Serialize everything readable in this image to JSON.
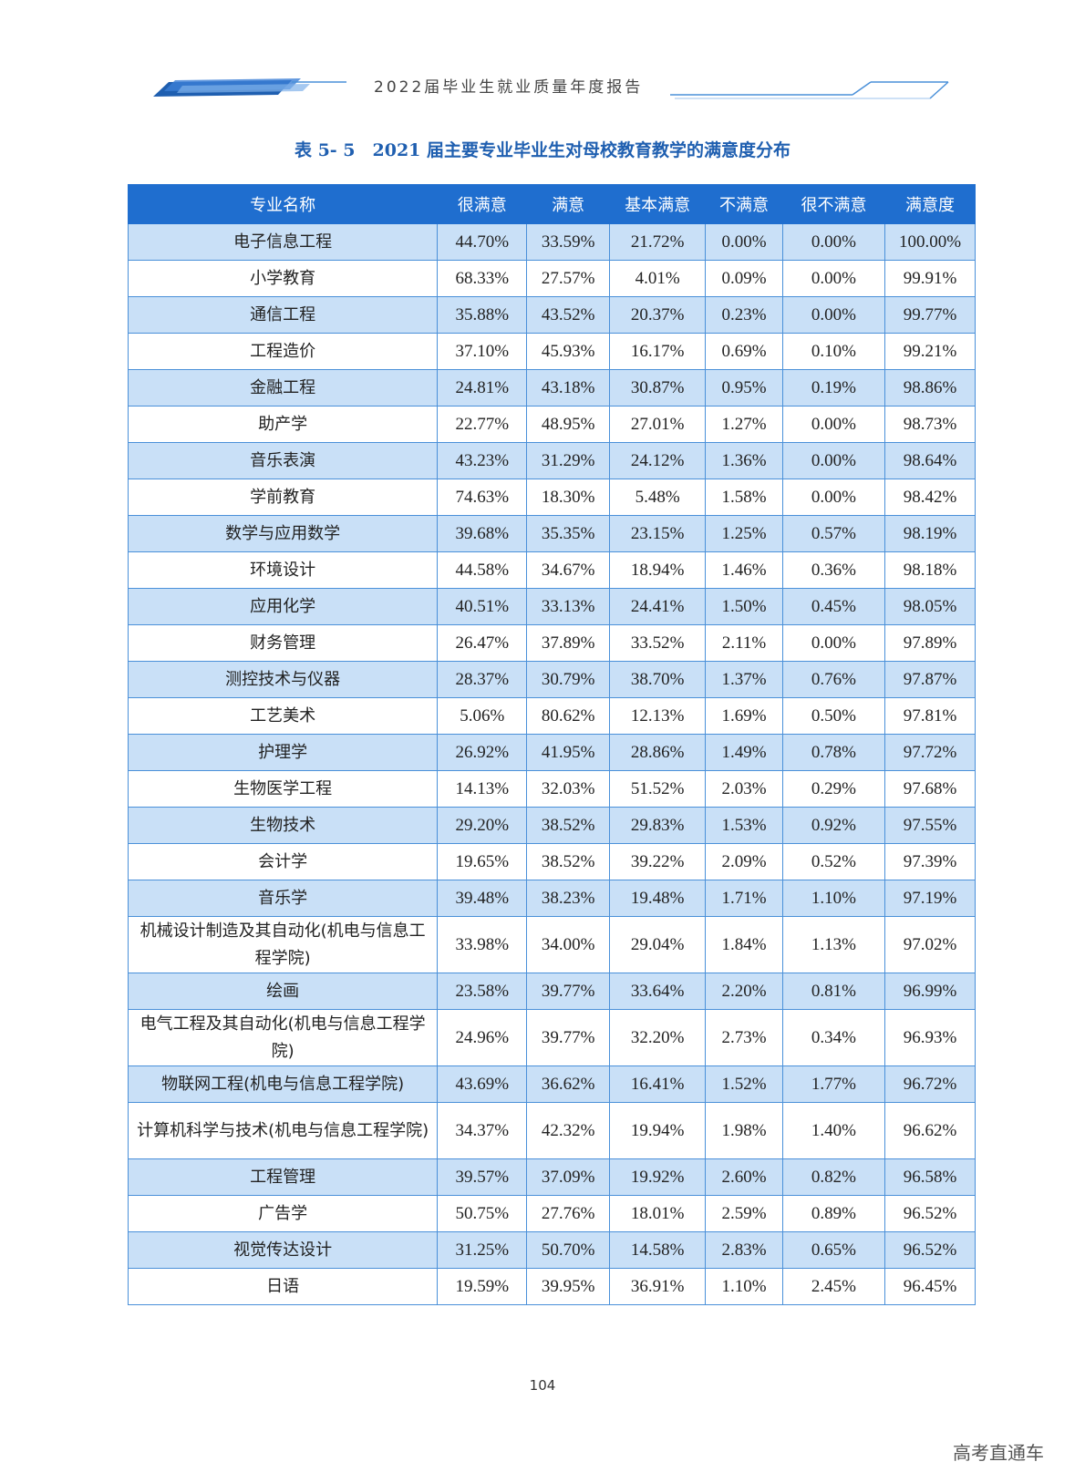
{
  "header": {
    "title": "2022届毕业生就业质量年度报告"
  },
  "caption": "表 5- 5　2021 届主要专业毕业生对母校教育教学的满意度分布",
  "table": {
    "columns": [
      "专业名称",
      "很满意",
      "满意",
      "基本满意",
      "不满意",
      "很不满意",
      "满意度"
    ],
    "rows": [
      [
        "电子信息工程",
        "44.70%",
        "33.59%",
        "21.72%",
        "0.00%",
        "0.00%",
        "100.00%"
      ],
      [
        "小学教育",
        "68.33%",
        "27.57%",
        "4.01%",
        "0.09%",
        "0.00%",
        "99.91%"
      ],
      [
        "通信工程",
        "35.88%",
        "43.52%",
        "20.37%",
        "0.23%",
        "0.00%",
        "99.77%"
      ],
      [
        "工程造价",
        "37.10%",
        "45.93%",
        "16.17%",
        "0.69%",
        "0.10%",
        "99.21%"
      ],
      [
        "金融工程",
        "24.81%",
        "43.18%",
        "30.87%",
        "0.95%",
        "0.19%",
        "98.86%"
      ],
      [
        "助产学",
        "22.77%",
        "48.95%",
        "27.01%",
        "1.27%",
        "0.00%",
        "98.73%"
      ],
      [
        "音乐表演",
        "43.23%",
        "31.29%",
        "24.12%",
        "1.36%",
        "0.00%",
        "98.64%"
      ],
      [
        "学前教育",
        "74.63%",
        "18.30%",
        "5.48%",
        "1.58%",
        "0.00%",
        "98.42%"
      ],
      [
        "数学与应用数学",
        "39.68%",
        "35.35%",
        "23.15%",
        "1.25%",
        "0.57%",
        "98.19%"
      ],
      [
        "环境设计",
        "44.58%",
        "34.67%",
        "18.94%",
        "1.46%",
        "0.36%",
        "98.18%"
      ],
      [
        "应用化学",
        "40.51%",
        "33.13%",
        "24.41%",
        "1.50%",
        "0.45%",
        "98.05%"
      ],
      [
        "财务管理",
        "26.47%",
        "37.89%",
        "33.52%",
        "2.11%",
        "0.00%",
        "97.89%"
      ],
      [
        "测控技术与仪器",
        "28.37%",
        "30.79%",
        "38.70%",
        "1.37%",
        "0.76%",
        "97.87%"
      ],
      [
        "工艺美术",
        "5.06%",
        "80.62%",
        "12.13%",
        "1.69%",
        "0.50%",
        "97.81%"
      ],
      [
        "护理学",
        "26.92%",
        "41.95%",
        "28.86%",
        "1.49%",
        "0.78%",
        "97.72%"
      ],
      [
        "生物医学工程",
        "14.13%",
        "32.03%",
        "51.52%",
        "2.03%",
        "0.29%",
        "97.68%"
      ],
      [
        "生物技术",
        "29.20%",
        "38.52%",
        "29.83%",
        "1.53%",
        "0.92%",
        "97.55%"
      ],
      [
        "会计学",
        "19.65%",
        "38.52%",
        "39.22%",
        "2.09%",
        "0.52%",
        "97.39%"
      ],
      [
        "音乐学",
        "39.48%",
        "38.23%",
        "19.48%",
        "1.71%",
        "1.10%",
        "97.19%"
      ],
      [
        "机械设计制造及其自动化(机电与信息工程学院)",
        "33.98%",
        "34.00%",
        "29.04%",
        "1.84%",
        "1.13%",
        "97.02%"
      ],
      [
        "绘画",
        "23.58%",
        "39.77%",
        "33.64%",
        "2.20%",
        "0.81%",
        "96.99%"
      ],
      [
        "电气工程及其自动化(机电与信息工程学院)",
        "24.96%",
        "39.77%",
        "32.20%",
        "2.73%",
        "0.34%",
        "96.93%"
      ],
      [
        "物联网工程(机电与信息工程学院)",
        "43.69%",
        "36.62%",
        "16.41%",
        "1.52%",
        "1.77%",
        "96.72%"
      ],
      [
        "计算机科学与技术(机电与信息工程学院)",
        "34.37%",
        "42.32%",
        "19.94%",
        "1.98%",
        "1.40%",
        "96.62%"
      ],
      [
        "工程管理",
        "39.57%",
        "37.09%",
        "19.92%",
        "2.60%",
        "0.82%",
        "96.58%"
      ],
      [
        "广告学",
        "50.75%",
        "27.76%",
        "18.01%",
        "2.59%",
        "0.89%",
        "96.52%"
      ],
      [
        "视觉传达设计",
        "31.25%",
        "50.70%",
        "14.58%",
        "2.83%",
        "0.65%",
        "96.52%"
      ],
      [
        "日语",
        "19.59%",
        "39.95%",
        "36.91%",
        "1.10%",
        "2.45%",
        "96.45%"
      ]
    ]
  },
  "page_number": "104",
  "watermark": "高考直通车"
}
